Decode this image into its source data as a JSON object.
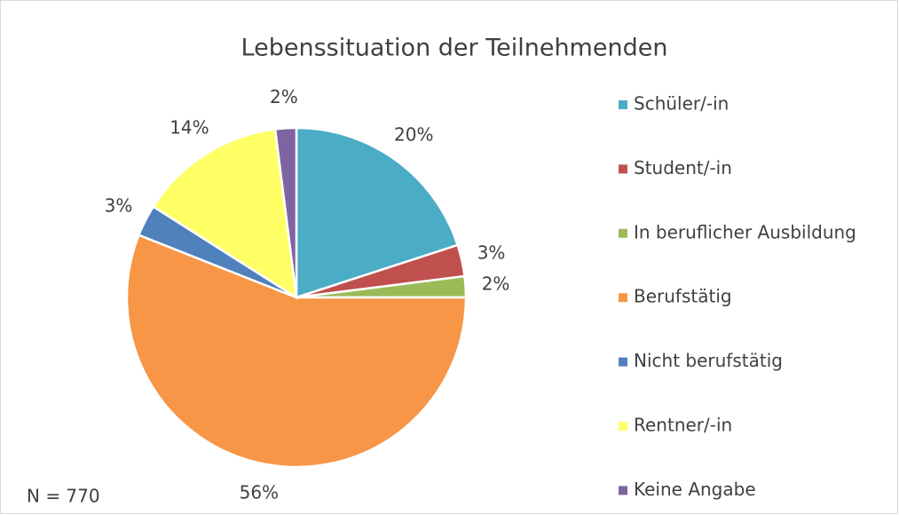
{
  "chart_data": {
    "type": "pie",
    "title": "Lebenssituation der Teilnehmenden",
    "categories": [
      "Schüler/-in",
      "Student/-in",
      "In beruflicher Ausbildung",
      "Berufstätig",
      "Nicht berufstätig",
      "Rentner/-in",
      "Keine Angabe"
    ],
    "values": [
      20,
      3,
      2,
      56,
      3,
      14,
      2
    ],
    "value_labels": [
      "20%",
      "3%",
      "2%",
      "56%",
      "3%",
      "14%",
      "2%"
    ],
    "colors": [
      "#4bacc6",
      "#c0504d",
      "#9bbb59",
      "#f79646",
      "#4f81bd",
      "#ffff66",
      "#8064a2"
    ],
    "legend": "right",
    "annotation": "N = 770"
  }
}
